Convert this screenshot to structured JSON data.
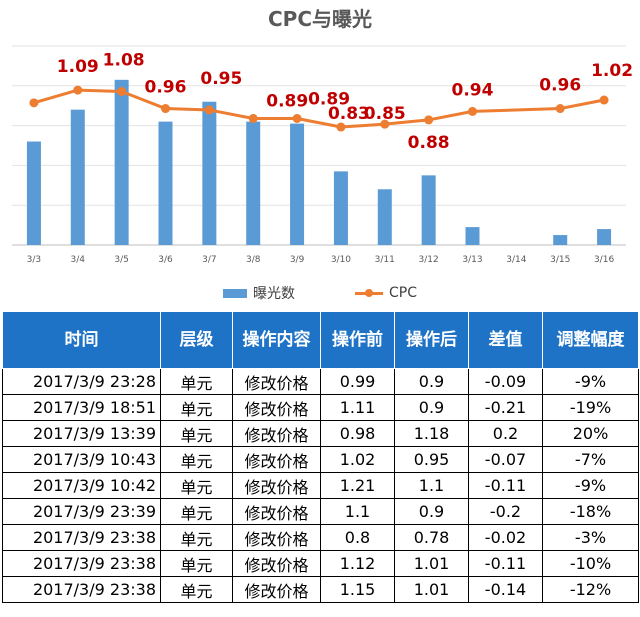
{
  "chart_data": {
    "type": "bar",
    "title": "CPC与曝光",
    "categories": [
      "3/3",
      "3/4",
      "3/5",
      "3/6",
      "3/7",
      "3/8",
      "3/9",
      "3/10",
      "3/11",
      "3/12",
      "3/13",
      "3/14",
      "3/15",
      "3/16"
    ],
    "series": [
      {
        "name": "曝光数",
        "type": "bar",
        "color": "#5b9bd5",
        "values": [
          52,
          68,
          83,
          62,
          72,
          62,
          61,
          37,
          28,
          35,
          9,
          0,
          5,
          8
        ]
      },
      {
        "name": "CPC",
        "type": "line",
        "color": "#ed7d31",
        "values": [
          1.0,
          1.09,
          1.08,
          0.96,
          0.95,
          0.89,
          0.89,
          0.83,
          0.85,
          0.88,
          0.94,
          null,
          0.96,
          1.02
        ],
        "labels": [
          "",
          "1.09",
          "1.08",
          "0.96",
          "0.95",
          "0.89",
          "0.89",
          "0.83",
          "0.85",
          "0.88",
          "0.94",
          "",
          "0.96",
          "1.02"
        ]
      }
    ],
    "bar_ylim": [
      0,
      100
    ],
    "line_ylim": [
      0,
      1.4
    ],
    "grid": true,
    "legend_position": "bottom",
    "label_color": "#c00000"
  },
  "table": {
    "headers": [
      "时间",
      "层级",
      "操作内容",
      "操作前",
      "操作后",
      "差值",
      "调整幅度"
    ],
    "rows": [
      [
        "2017/3/9 23:28",
        "单元",
        "修改价格",
        "0.99",
        "0.9",
        "-0.09",
        "-9%"
      ],
      [
        "2017/3/9 18:51",
        "单元",
        "修改价格",
        "1.11",
        "0.9",
        "-0.21",
        "-19%"
      ],
      [
        "2017/3/9 13:39",
        "单元",
        "修改价格",
        "0.98",
        "1.18",
        "0.2",
        "20%"
      ],
      [
        "2017/3/9 10:43",
        "单元",
        "修改价格",
        "1.02",
        "0.95",
        "-0.07",
        "-7%"
      ],
      [
        "2017/3/9 10:42",
        "单元",
        "修改价格",
        "1.21",
        "1.1",
        "-0.11",
        "-9%"
      ],
      [
        "2017/3/9 23:39",
        "单元",
        "修改价格",
        "1.1",
        "0.9",
        "-0.2",
        "-18%"
      ],
      [
        "2017/3/9 23:38",
        "单元",
        "修改价格",
        "0.8",
        "0.78",
        "-0.02",
        "-3%"
      ],
      [
        "2017/3/9 23:38",
        "单元",
        "修改价格",
        "1.12",
        "1.01",
        "-0.11",
        "-10%"
      ],
      [
        "2017/3/9 23:38",
        "单元",
        "修改价格",
        "1.15",
        "1.01",
        "-0.14",
        "-12%"
      ]
    ],
    "header_color": "#1f73c7"
  }
}
